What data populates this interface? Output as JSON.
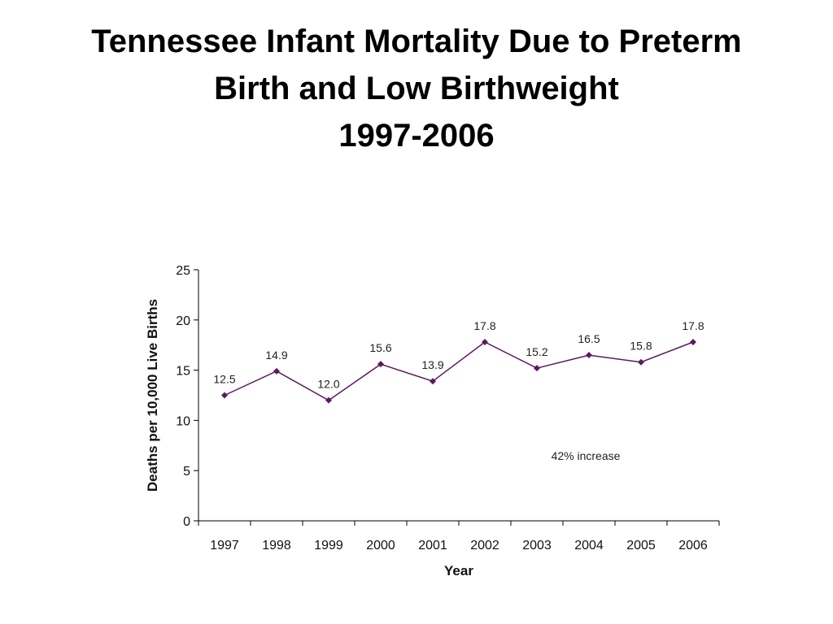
{
  "slide": {
    "title_lines": [
      "Tennessee Infant Mortality Due to Preterm",
      "Birth and Low Birthweight",
      "1997-2006"
    ]
  },
  "chart_data": {
    "type": "line",
    "title": "",
    "xlabel": "Year",
    "ylabel": "Deaths per 10,000 Live Births",
    "categories": [
      "1997",
      "1998",
      "1999",
      "2000",
      "2001",
      "2002",
      "2003",
      "2004",
      "2005",
      "2006"
    ],
    "values": [
      12.5,
      14.9,
      12.0,
      15.6,
      13.9,
      17.8,
      15.2,
      16.5,
      15.8,
      17.8
    ],
    "data_labels": [
      "12.5",
      "14.9",
      "12.0",
      "15.6",
      "13.9",
      "17.8",
      "15.2",
      "16.5",
      "15.8",
      "17.8"
    ],
    "yticks": [
      "0",
      "5",
      "10",
      "15",
      "20",
      "25"
    ],
    "ylim": [
      0,
      25
    ],
    "grid": false,
    "legend": "none",
    "annotation": "42% increase",
    "line_color": "#5b1a5e"
  }
}
